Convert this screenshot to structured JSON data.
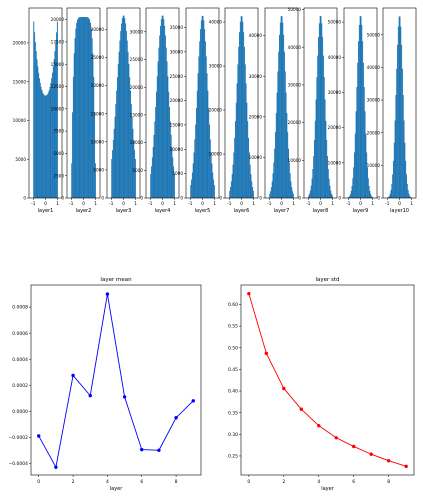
{
  "chart_data": [
    {
      "type": "bar",
      "subplot": "histogram-row",
      "panels": [
        {
          "xlabel": "layer1",
          "yticks": [
            0,
            5000,
            10000,
            15000,
            20000
          ],
          "xticks": [
            "-1",
            "0",
            "1"
          ],
          "peak": 23500,
          "shape": "u",
          "ylim": [
            0,
            24500
          ]
        },
        {
          "xlabel": "layer2",
          "yticks": [
            0,
            2500,
            5000,
            7500,
            10000,
            12500,
            15000,
            17500,
            20000
          ],
          "xticks": [
            "-1",
            "0",
            "1"
          ],
          "peak": 20500,
          "shape": "plateau",
          "ylim": [
            0,
            21300
          ]
        },
        {
          "xlabel": "layer3",
          "yticks": [
            0,
            5000,
            10000,
            15000,
            20000,
            25000,
            30000
          ],
          "xticks": [
            "-1",
            "0",
            "1"
          ],
          "peak": 32500,
          "shape": "bell",
          "width": 0.55,
          "ylim": [
            0,
            33800
          ]
        },
        {
          "xlabel": "layer4",
          "yticks": [
            0,
            5000,
            10000,
            15000,
            20000,
            25000,
            30000
          ],
          "xticks": [
            "-1",
            "0",
            "1"
          ],
          "peak": 33000,
          "shape": "bell",
          "width": 0.48,
          "ylim": [
            0,
            34300
          ]
        },
        {
          "xlabel": "layer5",
          "yticks": [
            0,
            5000,
            10000,
            15000,
            20000,
            25000,
            30000,
            35000
          ],
          "xticks": [
            "-1",
            "0",
            "1"
          ],
          "peak": 37500,
          "shape": "bell",
          "width": 0.42,
          "ylim": [
            0,
            39000
          ]
        },
        {
          "xlabel": "layer6",
          "yticks": [
            0,
            10000,
            20000,
            30000,
            40000
          ],
          "xticks": [
            "-1",
            "0",
            "1"
          ],
          "peak": 41500,
          "shape": "bell",
          "width": 0.38,
          "ylim": [
            0,
            43200
          ]
        },
        {
          "xlabel": "layer7",
          "yticks": [
            0,
            10000,
            20000,
            30000,
            40000
          ],
          "xticks": [
            "-1",
            "0",
            "1"
          ],
          "peak": 45000,
          "shape": "bell",
          "width": 0.35,
          "ylim": [
            0,
            46800
          ]
        },
        {
          "xlabel": "layer8",
          "yticks": [
            0,
            10000,
            20000,
            30000,
            40000,
            50000
          ],
          "xticks": [
            "-1",
            "0",
            "1"
          ],
          "peak": 48500,
          "shape": "bell",
          "width": 0.33,
          "ylim": [
            0,
            50400
          ]
        },
        {
          "xlabel": "layer9",
          "yticks": [
            0,
            10000,
            20000,
            30000,
            40000,
            50000
          ],
          "xticks": [
            "-1",
            "0",
            "1"
          ],
          "peak": 52000,
          "shape": "bell",
          "width": 0.3,
          "ylim": [
            0,
            54000
          ]
        },
        {
          "xlabel": "layer10",
          "yticks": [
            0,
            10000,
            20000,
            30000,
            40000,
            50000
          ],
          "xticks": [
            "-1",
            "0",
            "1"
          ],
          "peak": 56000,
          "shape": "bell",
          "width": 0.28,
          "ylim": [
            0,
            58200
          ]
        }
      ]
    },
    {
      "type": "line",
      "title": "layer mean",
      "xlabel": "layer",
      "ylabel": "",
      "color": "#0000ff",
      "x": [
        0,
        1,
        2,
        3,
        4,
        5,
        6,
        7,
        8,
        9
      ],
      "y": [
        -0.00019,
        -0.00043,
        0.000275,
        0.00012,
        0.0009,
        0.00011,
        -0.000295,
        -0.0003,
        -5e-05,
        8e-05
      ],
      "xticks": [
        "0",
        "2",
        "4",
        "6",
        "8"
      ],
      "yticks": [
        "−0.0004",
        "−0.0002",
        "0.0000",
        "0.0002",
        "0.0004",
        "0.0006",
        "0.0008"
      ],
      "xlim": [
        -0.45,
        9.45
      ],
      "ylim": [
        -0.00049,
        0.00097
      ]
    },
    {
      "type": "line",
      "title": "layer std",
      "xlabel": "layer",
      "ylabel": "",
      "color": "#ff0000",
      "x": [
        0,
        1,
        2,
        3,
        4,
        5,
        6,
        7,
        8,
        9
      ],
      "y": [
        0.625,
        0.487,
        0.406,
        0.358,
        0.32,
        0.292,
        0.272,
        0.254,
        0.239,
        0.226
      ],
      "xticks": [
        "0",
        "2",
        "4",
        "6",
        "8"
      ],
      "yticks": [
        "0.25",
        "0.30",
        "0.35",
        "0.40",
        "0.45",
        "0.50",
        "0.55",
        "0.60"
      ],
      "xlim": [
        -0.45,
        9.45
      ],
      "ylim": [
        0.206,
        0.645
      ]
    }
  ]
}
